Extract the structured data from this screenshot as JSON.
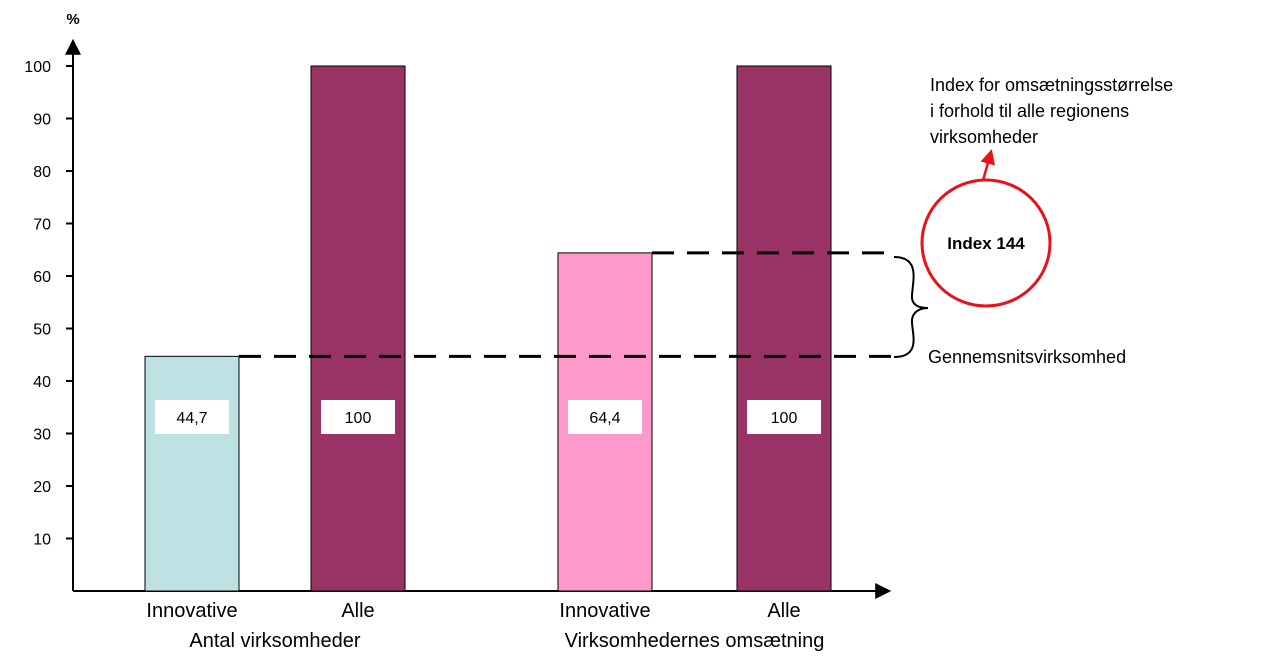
{
  "chart_data": {
    "type": "bar",
    "y_unit_label": "%",
    "y_ticks": [
      10,
      20,
      30,
      40,
      50,
      60,
      70,
      80,
      90,
      100
    ],
    "ylim": [
      0,
      100
    ],
    "groups": [
      {
        "label": "Antal virksomheder",
        "bars": [
          {
            "category": "Innovative",
            "value": 44.7,
            "value_label": "44,7",
            "color": "#BEE1E4"
          },
          {
            "category": "Alle",
            "value": 100,
            "value_label": "100",
            "color": "#993366"
          }
        ]
      },
      {
        "label": "Virksomhedernes omsætning",
        "bars": [
          {
            "category": "Innovative",
            "value": 64.4,
            "value_label": "64,4",
            "color": "#FF99CC"
          },
          {
            "category": "Alle",
            "value": 100,
            "value_label": "100",
            "color": "#993366"
          }
        ]
      }
    ],
    "annotations": {
      "index_text": "Index for omsætningsstørrelse i forhold til alle regionens virksomheder",
      "index_lines": [
        "Index for omsætningsstørrelse",
        "i forhold til alle regionens",
        "virksomheder"
      ],
      "index_badge": "Index 144",
      "index_badge_color": "#E8121B",
      "average_label": "Gennemsnitsvirksomhed"
    }
  }
}
